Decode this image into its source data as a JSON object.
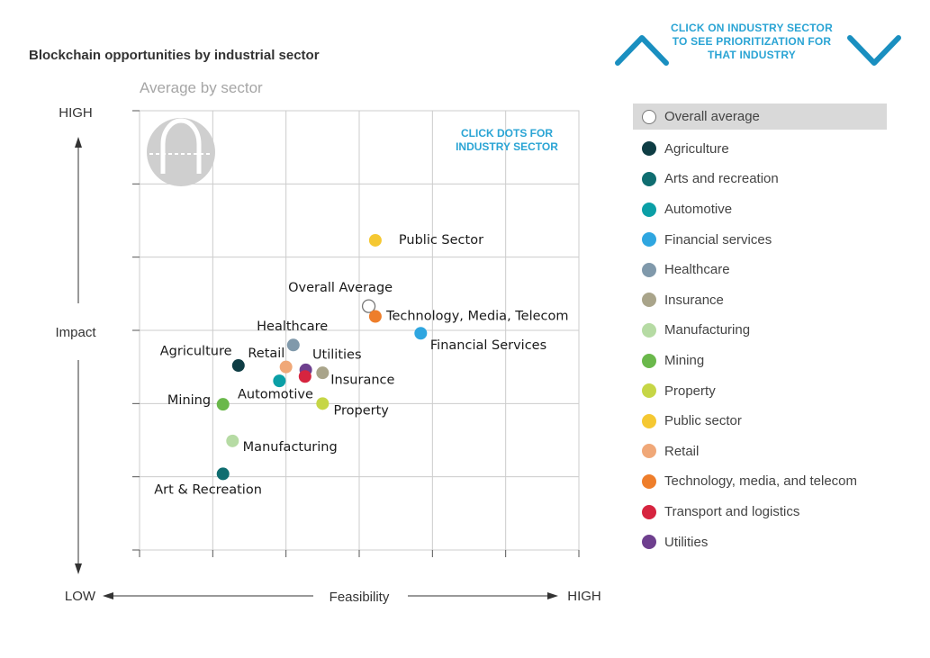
{
  "header": {
    "title": "Blockchain opportunities by industrial sector",
    "subtitle": "Average by sector",
    "nav_hint": "CLICK ON INDUSTRY SECTOR TO SEE PRIORITIZATION FOR THAT INDUSTRY",
    "dots_hint_line1": "CLICK DOTS FOR",
    "dots_hint_line2": "INDUSTRY SECTOR"
  },
  "colors": {
    "accent": "#2aa4d4",
    "grid": "#cccccc",
    "axis": "#333333"
  },
  "chart_data": {
    "type": "scatter",
    "title": "Blockchain opportunities by industrial sector",
    "subtitle": "Average by sector",
    "xlabel": "Feasibility",
    "ylabel": "Impact",
    "x_low_label": "LOW",
    "x_high_label": "HIGH",
    "y_high_label": "HIGH",
    "xlim": [
      0,
      6
    ],
    "ylim": [
      0,
      6
    ],
    "grid": true,
    "points": [
      {
        "name": "Public Sector",
        "x": 3.22,
        "y": 4.23,
        "color": "#f5c832"
      },
      {
        "name": "Overall Average",
        "x": 3.13,
        "y": 3.33,
        "color": "#ffffff",
        "hollow": true
      },
      {
        "name": "Technology, Media, Telecom",
        "x": 3.22,
        "y": 3.19,
        "color": "#ee7e2b"
      },
      {
        "name": "Financial Services",
        "x": 3.84,
        "y": 2.96,
        "color": "#2fa6e0"
      },
      {
        "name": "Healthcare",
        "x": 2.1,
        "y": 2.8,
        "color": "#8099ab"
      },
      {
        "name": "Agriculture",
        "x": 1.35,
        "y": 2.52,
        "color": "#0e3d44"
      },
      {
        "name": "Retail",
        "x": 2.0,
        "y": 2.5,
        "color": "#f0a878"
      },
      {
        "name": "Utilities",
        "x": 2.27,
        "y": 2.46,
        "color": "#6e3f8e"
      },
      {
        "name": "Transport and logistics",
        "x": 2.26,
        "y": 2.37,
        "color": "#d6243f"
      },
      {
        "name": "Insurance",
        "x": 2.5,
        "y": 2.42,
        "color": "#a9a48a"
      },
      {
        "name": "Automotive",
        "x": 1.91,
        "y": 2.31,
        "color": "#0b9fa6"
      },
      {
        "name": "Mining",
        "x": 1.14,
        "y": 1.99,
        "color": "#6ab84b"
      },
      {
        "name": "Property",
        "x": 2.5,
        "y": 2.0,
        "color": "#c6d646"
      },
      {
        "name": "Manufacturing",
        "x": 1.27,
        "y": 1.49,
        "color": "#b6dba4"
      },
      {
        "name": "Art & Recreation",
        "x": 1.14,
        "y": 1.04,
        "color": "#0f6d70"
      }
    ],
    "annotations": [
      {
        "text": "Public Sector",
        "x": 3.54,
        "y": 4.23
      },
      {
        "text": "Overall Average",
        "x": 2.03,
        "y": 3.58
      },
      {
        "text": "Technology, Media, Telecom",
        "x": 3.37,
        "y": 3.19
      },
      {
        "text": "Financial Services",
        "x": 3.97,
        "y": 2.79
      },
      {
        "text": "Healthcare",
        "x": 1.6,
        "y": 3.05
      },
      {
        "text": "Agriculture",
        "x": 0.28,
        "y": 2.71
      },
      {
        "text": "Retail",
        "x": 1.48,
        "y": 2.68
      },
      {
        "text": "Utilities",
        "x": 2.36,
        "y": 2.66
      },
      {
        "text": "Insurance",
        "x": 2.61,
        "y": 2.32
      },
      {
        "text": "Automotive",
        "x": 1.34,
        "y": 2.12
      },
      {
        "text": "Mining",
        "x": 0.38,
        "y": 2.04
      },
      {
        "text": "Property",
        "x": 2.65,
        "y": 1.9
      },
      {
        "text": "Manufacturing",
        "x": 1.41,
        "y": 1.4
      },
      {
        "text": "Art & Recreation",
        "x": 0.2,
        "y": 0.82
      }
    ]
  },
  "legend": [
    {
      "label": "Overall average",
      "color": "#ffffff",
      "hollow": true,
      "active": true
    },
    {
      "label": "Agriculture",
      "color": "#0e3d44"
    },
    {
      "label": "Arts and recreation",
      "color": "#0f6d70"
    },
    {
      "label": "Automotive",
      "color": "#0b9fa6"
    },
    {
      "label": "Financial services",
      "color": "#2fa6e0"
    },
    {
      "label": "Healthcare",
      "color": "#8099ab"
    },
    {
      "label": "Insurance",
      "color": "#a9a48a"
    },
    {
      "label": "Manufacturing",
      "color": "#b6dba4"
    },
    {
      "label": "Mining",
      "color": "#6ab84b"
    },
    {
      "label": "Property",
      "color": "#c6d646"
    },
    {
      "label": "Public sector",
      "color": "#f5c832"
    },
    {
      "label": "Retail",
      "color": "#f0a878"
    },
    {
      "label": "Technology, media, and telecom",
      "color": "#ee7e2b"
    },
    {
      "label": "Transport and logistics",
      "color": "#d6243f"
    },
    {
      "label": "Utilities",
      "color": "#6e3f8e"
    }
  ]
}
